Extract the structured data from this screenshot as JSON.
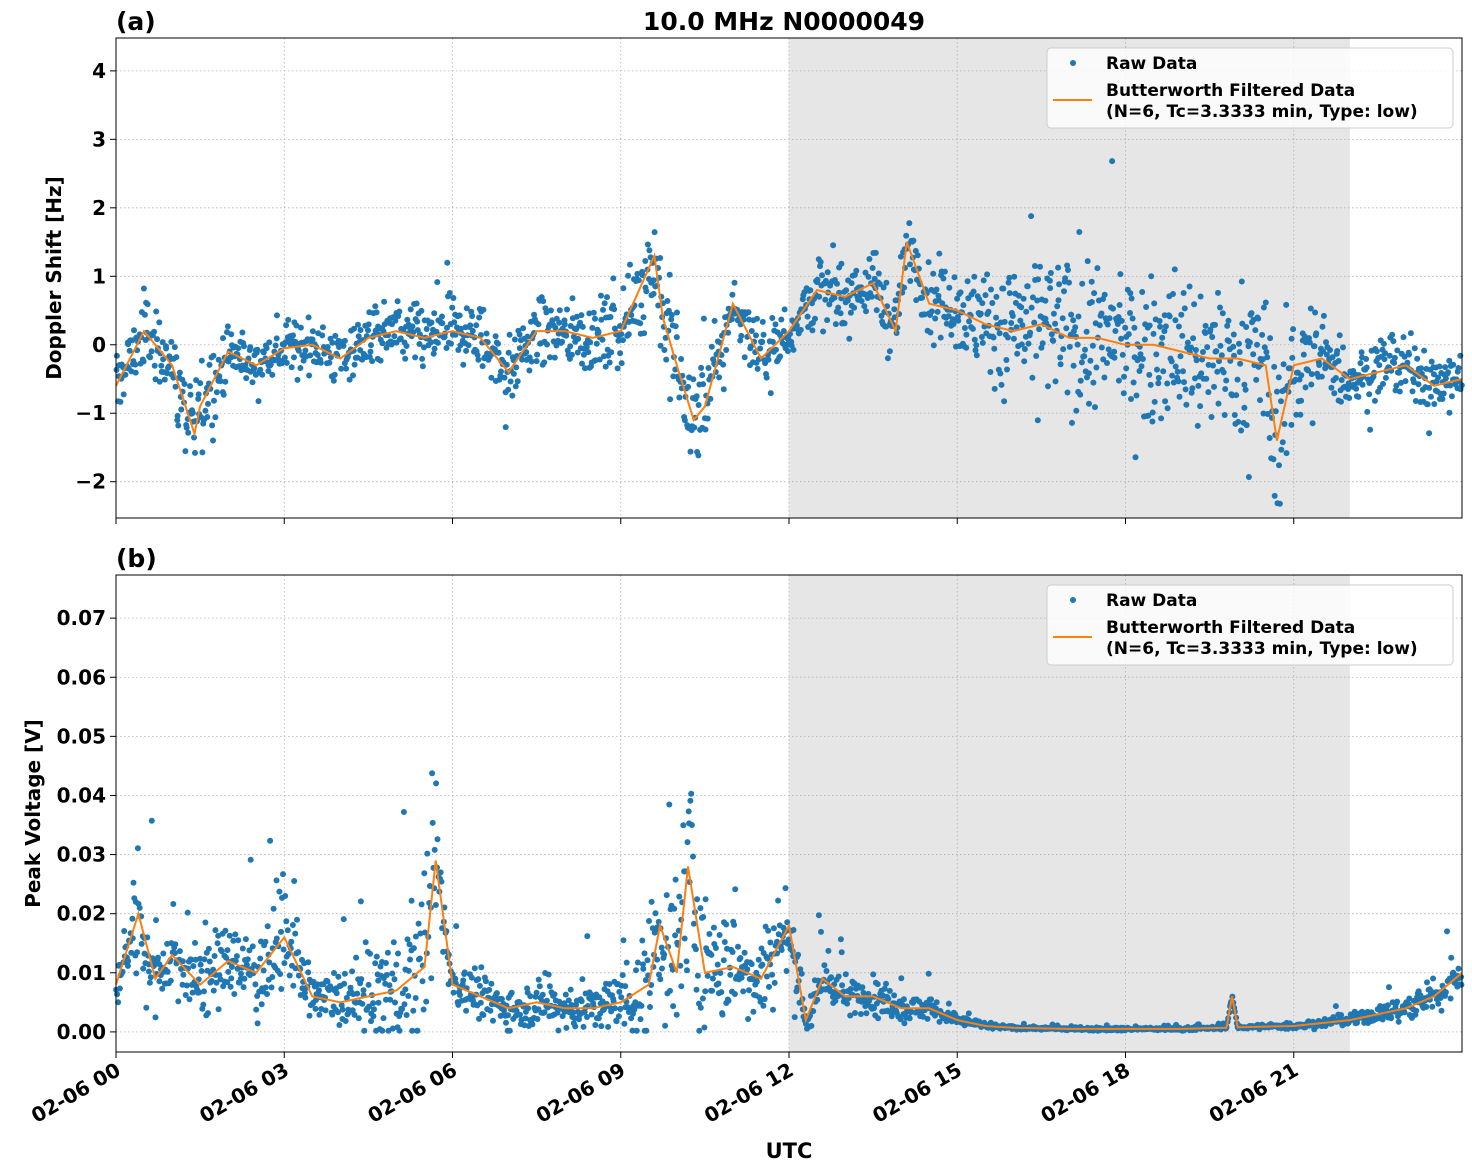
{
  "chart_data": [
    {
      "type": "scatter",
      "panel_label": "(a)",
      "title": "10.0 MHz N0000049",
      "xlabel": "",
      "ylabel": "Doppler Shift [Hz]",
      "xlim_hours": [
        0,
        24
      ],
      "ylim": [
        -2.53,
        4.48
      ],
      "yticks": [
        -2,
        -1,
        0,
        1,
        2,
        3,
        4
      ],
      "ytick_labels": [
        "−2",
        "−1",
        "0",
        "1",
        "2",
        "3",
        "4"
      ],
      "grid": true,
      "legend": "top-right",
      "night_shading_hours": [
        12,
        22
      ],
      "series": [
        {
          "name": "Raw Data",
          "color": "#1f77b4",
          "marker": "dot",
          "spread_hours": [
            0,
            1,
            1.5,
            2,
            9,
            10,
            11,
            12,
            15,
            16,
            21,
            22,
            24
          ],
          "spread_values": [
            0.35,
            0.5,
            0.6,
            0.3,
            0.45,
            0.75,
            0.35,
            0.4,
            0.45,
            0.9,
            0.85,
            0.35,
            0.35
          ]
        },
        {
          "name": "Butterworth Filtered Data\n(N=6, Tc=3.3333 min, Type: low)",
          "color": "#ff7f0e",
          "x_hours": [
            0,
            0.5,
            1,
            1.4,
            1.5,
            2,
            2.5,
            3,
            3.5,
            4,
            4.5,
            5,
            5.5,
            6,
            6.5,
            7,
            7.5,
            8,
            8.5,
            9,
            9.6,
            9.75,
            10,
            10.3,
            10.5,
            11,
            11.5,
            12,
            12.5,
            13,
            13.5,
            13.9,
            14.1,
            14.5,
            15,
            15.5,
            16,
            16.5,
            17,
            17.5,
            18,
            18.5,
            19,
            19.5,
            20,
            20.5,
            20.7,
            21,
            21.5,
            22,
            22.5,
            23,
            23.5,
            24
          ],
          "values": [
            -0.6,
            0.2,
            -0.3,
            -1.3,
            -0.9,
            -0.1,
            -0.3,
            -0.05,
            0.0,
            -0.2,
            0.1,
            0.2,
            0.1,
            0.2,
            0.1,
            -0.4,
            0.2,
            0.2,
            0.1,
            0.2,
            1.3,
            0.4,
            -0.3,
            -1.1,
            -0.9,
            0.6,
            -0.2,
            0.2,
            0.8,
            0.7,
            0.9,
            0.2,
            1.5,
            0.6,
            0.5,
            0.3,
            0.2,
            0.3,
            0.1,
            0.1,
            0.0,
            0.0,
            -0.1,
            -0.2,
            -0.2,
            -0.3,
            -1.4,
            -0.3,
            -0.2,
            -0.5,
            -0.4,
            -0.3,
            -0.6,
            -0.5
          ]
        }
      ]
    },
    {
      "type": "scatter",
      "panel_label": "(b)",
      "xlabel": "UTC",
      "ylabel": "Peak Voltage [V]",
      "xlim_hours": [
        0,
        24
      ],
      "ylim": [
        -0.0034,
        0.0773
      ],
      "yticks": [
        0,
        0.01,
        0.02,
        0.03,
        0.04,
        0.05,
        0.06,
        0.07
      ],
      "ytick_labels": [
        "0.00",
        "0.01",
        "0.02",
        "0.03",
        "0.04",
        "0.05",
        "0.06",
        "0.07"
      ],
      "grid": true,
      "legend": "top-right",
      "night_shading_hours": [
        12,
        22
      ],
      "series": [
        {
          "name": "Raw Data",
          "color": "#1f77b4",
          "marker": "dot",
          "spread_hours": [
            0,
            0.4,
            1,
            3,
            3.5,
            5.6,
            6,
            9,
            9.6,
            10.2,
            11,
            12,
            12.5,
            13,
            14,
            15,
            16,
            20,
            22,
            24
          ],
          "spread_values": [
            0.004,
            0.012,
            0.006,
            0.009,
            0.004,
            0.015,
            0.004,
            0.005,
            0.014,
            0.018,
            0.008,
            0.01,
            0.004,
            0.004,
            0.003,
            0.001,
            0.0003,
            0.0003,
            0.001,
            0.004
          ]
        },
        {
          "name": "Butterworth Filtered Data\n(N=6, Tc=3.3333 min, Type: low)",
          "color": "#ff7f0e",
          "x_hours": [
            0,
            0.4,
            0.7,
            1,
            1.5,
            2,
            2.5,
            3,
            3.5,
            4,
            4.5,
            5,
            5.5,
            5.7,
            6,
            6.5,
            7,
            7.5,
            8,
            8.5,
            9,
            9.5,
            9.7,
            10,
            10.2,
            10.5,
            11,
            11.5,
            12,
            12.3,
            12.6,
            13,
            13.5,
            14,
            14.5,
            15,
            15.5,
            16,
            17,
            18,
            19,
            19.8,
            19.9,
            20,
            21,
            22,
            22.5,
            23,
            23.5,
            24
          ],
          "values": [
            0.008,
            0.02,
            0.009,
            0.013,
            0.008,
            0.012,
            0.01,
            0.016,
            0.006,
            0.005,
            0.006,
            0.007,
            0.011,
            0.029,
            0.008,
            0.006,
            0.004,
            0.005,
            0.004,
            0.004,
            0.005,
            0.008,
            0.018,
            0.01,
            0.028,
            0.01,
            0.011,
            0.009,
            0.018,
            0.002,
            0.009,
            0.006,
            0.006,
            0.004,
            0.004,
            0.002,
            0.001,
            0.0007,
            0.0005,
            0.0005,
            0.0005,
            0.0007,
            0.006,
            0.0008,
            0.001,
            0.002,
            0.003,
            0.004,
            0.006,
            0.01
          ]
        }
      ]
    }
  ],
  "x_tick_labels": [
    "02-06 00",
    "02-06 03",
    "02-06 06",
    "02-06 09",
    "02-06 12",
    "02-06 15",
    "02-06 18",
    "02-06 21"
  ],
  "x_tick_hours": [
    0,
    3,
    6,
    9,
    12,
    15,
    18,
    21
  ],
  "legend": {
    "raw": "Raw Data",
    "filtered_line1": "Butterworth Filtered Data",
    "filtered_line2": "(N=6, Tc=3.3333 min, Type: low)"
  }
}
